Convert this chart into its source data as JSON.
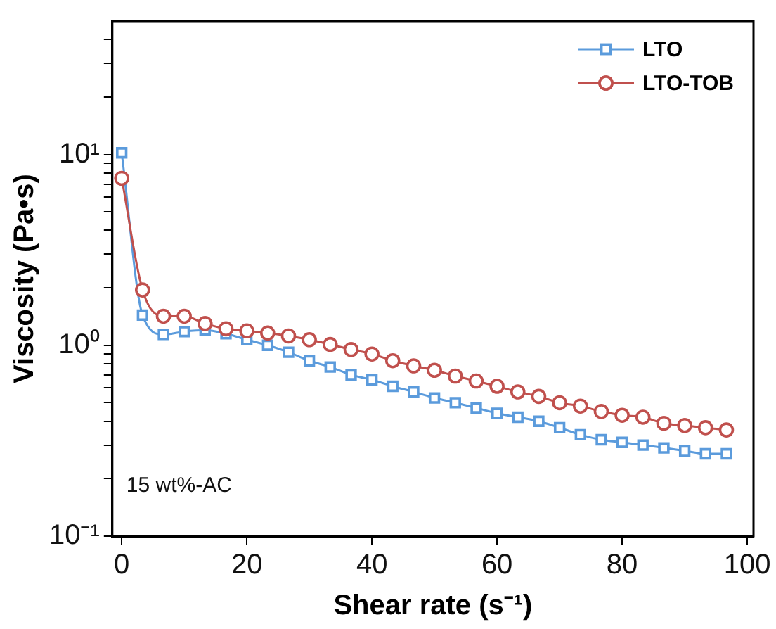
{
  "chart_data": {
    "type": "line",
    "xlabel": "Shear rate (s⁻¹)",
    "ylabel": "Viscosity (Pa•s)",
    "x": [
      0,
      3.33,
      6.67,
      10,
      13.33,
      16.67,
      20,
      23.33,
      26.67,
      30,
      33.33,
      36.67,
      40,
      43.33,
      46.67,
      50,
      53.33,
      56.67,
      60,
      63.33,
      66.67,
      70,
      73.33,
      76.67,
      80,
      83.33,
      86.67,
      90,
      93.33,
      96.67
    ],
    "series": [
      {
        "name": "LTO",
        "color": "#5b9bdc",
        "marker": "square",
        "values": [
          10.2,
          1.44,
          1.14,
          1.18,
          1.2,
          1.15,
          1.07,
          1.0,
          0.92,
          0.83,
          0.77,
          0.7,
          0.66,
          0.61,
          0.57,
          0.53,
          0.5,
          0.47,
          0.44,
          0.42,
          0.4,
          0.37,
          0.34,
          0.32,
          0.31,
          0.3,
          0.29,
          0.28,
          0.27,
          0.27
        ]
      },
      {
        "name": "LTO-TOB",
        "color": "#c0504d",
        "marker": "circle",
        "values": [
          7.5,
          1.95,
          1.42,
          1.42,
          1.3,
          1.22,
          1.19,
          1.16,
          1.12,
          1.07,
          1.01,
          0.95,
          0.9,
          0.83,
          0.78,
          0.74,
          0.69,
          0.65,
          0.61,
          0.57,
          0.54,
          0.5,
          0.48,
          0.45,
          0.43,
          0.42,
          0.39,
          0.38,
          0.37,
          0.36
        ]
      }
    ],
    "log": "y",
    "xlim": [
      -1.5,
      101
    ],
    "xticks": [
      0,
      20,
      40,
      60,
      80,
      100
    ],
    "ylim": [
      0.1,
      50
    ],
    "yticks": [
      {
        "value": 0.1,
        "label": "10⁻¹"
      },
      {
        "value": 0.2,
        "label": null
      },
      {
        "value": 0.3,
        "label": null
      },
      {
        "value": 0.4,
        "label": null
      },
      {
        "value": 0.5,
        "label": null
      },
      {
        "value": 0.6,
        "label": null
      },
      {
        "value": 0.7,
        "label": null
      },
      {
        "value": 0.8,
        "label": null
      },
      {
        "value": 0.9,
        "label": null
      },
      {
        "value": 1,
        "label": "10⁰"
      },
      {
        "value": 2,
        "label": null
      },
      {
        "value": 3,
        "label": null
      },
      {
        "value": 4,
        "label": null
      },
      {
        "value": 5,
        "label": null
      },
      {
        "value": 6,
        "label": null
      },
      {
        "value": 7,
        "label": null
      },
      {
        "value": 8,
        "label": null
      },
      {
        "value": 9,
        "label": null
      },
      {
        "value": 10,
        "label": "10¹"
      },
      {
        "value": 20,
        "label": null
      },
      {
        "value": 30,
        "label": null
      },
      {
        "value": 40,
        "label": null
      }
    ],
    "grid": false,
    "legend": "top right",
    "annotations": [
      "15 wt%-AC"
    ]
  }
}
